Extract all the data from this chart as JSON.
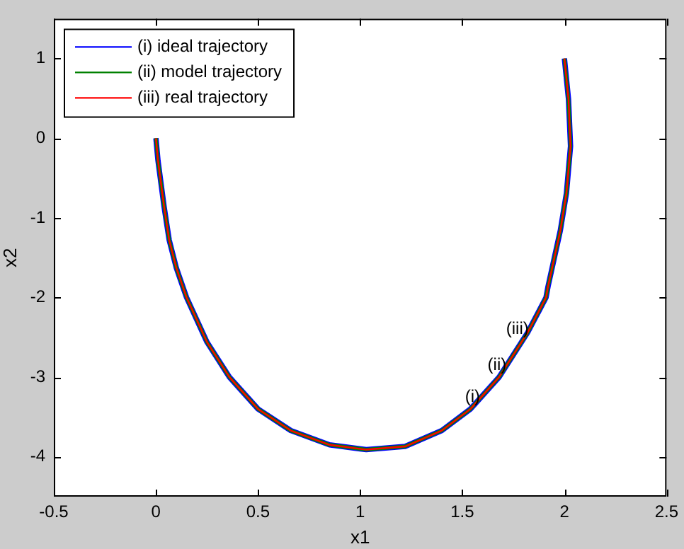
{
  "chart_data": {
    "type": "line",
    "xlabel": "x1",
    "ylabel": "x2",
    "x": [
      0,
      0.01,
      0.04,
      0.065,
      0.1,
      0.15,
      0.25,
      0.36,
      0.5,
      0.66,
      0.85,
      1.03,
      1.22,
      1.4,
      1.54,
      1.68,
      1.82,
      1.91,
      1.92,
      1.98,
      2.01,
      2.03,
      2.02,
      2.0
    ],
    "series": [
      {
        "name": "(i) ideal trajectory",
        "color": "#0000ff",
        "values": [
          0,
          -0.28,
          -0.86,
          -1.28,
          -1.63,
          -2,
          -2.56,
          -3,
          -3.4,
          -3.67,
          -3.85,
          -3.91,
          -3.87,
          -3.67,
          -3.4,
          -3,
          -2.44,
          -2,
          -1.86,
          -1.16,
          -0.69,
          -0.1,
          0.49,
          1.0
        ]
      },
      {
        "name": "(ii) model trajectory",
        "color": "#008000",
        "values": [
          0,
          -0.28,
          -0.86,
          -1.28,
          -1.63,
          -2,
          -2.56,
          -3,
          -3.4,
          -3.67,
          -3.85,
          -3.91,
          -3.87,
          -3.67,
          -3.4,
          -3,
          -2.44,
          -2,
          -1.86,
          -1.16,
          -0.69,
          -0.1,
          0.49,
          1.0
        ]
      },
      {
        "name": "(iii) real trajectory",
        "color": "#ff0000",
        "values": [
          0,
          -0.28,
          -0.86,
          -1.28,
          -1.63,
          -2,
          -2.56,
          -3,
          -3.4,
          -3.67,
          -3.85,
          -3.91,
          -3.87,
          -3.67,
          -3.4,
          -3,
          -2.44,
          -2,
          -1.86,
          -1.16,
          -0.69,
          -0.1,
          0.49,
          1.0
        ]
      }
    ],
    "xlim": [
      -0.5,
      2.5
    ],
    "xticks": [
      -0.5,
      0,
      0.5,
      1,
      1.5,
      2,
      2.5
    ],
    "ylim": [
      -4.5,
      1.5
    ],
    "yticks": [
      -4,
      -3,
      -2,
      -1,
      0,
      1
    ],
    "grid": false,
    "legend": "top left",
    "marker": "none",
    "line_style": "solid",
    "annotations": [
      {
        "text": "(i)",
        "x": 1.55,
        "y": -3.25
      },
      {
        "text": "(ii)",
        "x": 1.67,
        "y": -2.85
      },
      {
        "text": "(iii)",
        "x": 1.77,
        "y": -2.4
      }
    ]
  }
}
